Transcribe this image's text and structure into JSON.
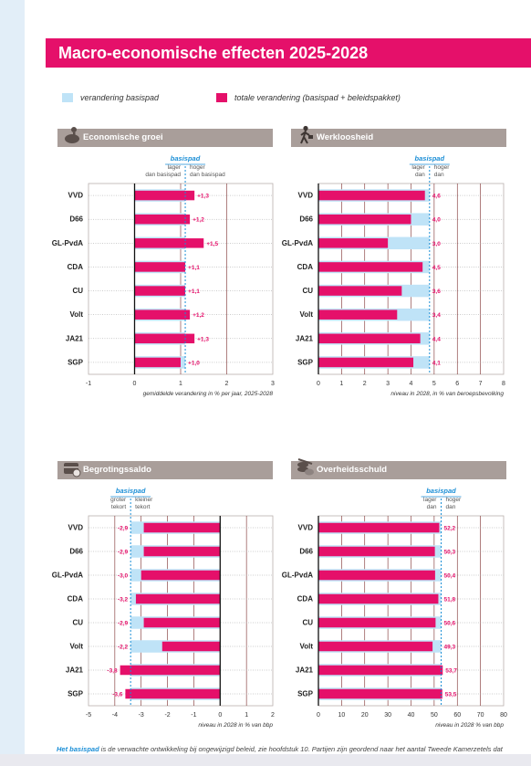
{
  "title": "Macro-economische effecten 2025-2028",
  "legend": {
    "basispad_label": "verandering basispad",
    "totaal_label": "totale verandering (basispad + beleidspakket)",
    "basispad_color": "#bfe3f7",
    "totaal_color": "#e5106a"
  },
  "panels": [
    {
      "title": "Economische groei",
      "icon": "piggy-bank-person-icon"
    },
    {
      "title": "Werkloosheid",
      "icon": "walking-person-briefcase-icon"
    },
    {
      "title": "Begrotingssaldo",
      "icon": "treasure-chest-coin-icon"
    },
    {
      "title": "Overheidsschuld",
      "icon": "coin-stack-icon"
    }
  ],
  "chart_data": [
    {
      "type": "bar",
      "orientation": "horizontal",
      "title": "Economische groei",
      "categories": [
        "VVD",
        "D66",
        "GL-PvdA",
        "CDA",
        "CU",
        "Volt",
        "JA21",
        "SGP"
      ],
      "series": [
        {
          "values": [
            1.3,
            1.2,
            1.5,
            1.1,
            1.1,
            1.2,
            1.3,
            1.0
          ]
        }
      ],
      "value_labels": [
        "+1,3",
        "+1,2",
        "+1,5",
        "+1,1",
        "+1,1",
        "+1,2",
        "+1,3",
        "+1,0"
      ],
      "basispad": 1.1,
      "baseline": 0,
      "xlim": [
        -1,
        3
      ],
      "ticks": [
        -1,
        0,
        1,
        2,
        3
      ],
      "xlabel": "gemiddelde verandering in % per jaar, 2025-2028",
      "direction_labels": {
        "marker": "basispad",
        "left": "lager\ndan basispad",
        "right": "hoger\ndan basispad"
      }
    },
    {
      "type": "bar",
      "orientation": "horizontal",
      "title": "Werkloosheid",
      "categories": [
        "VVD",
        "D66",
        "GL-PvdA",
        "CDA",
        "CU",
        "Volt",
        "JA21",
        "SGP"
      ],
      "series": [
        {
          "values": [
            4.6,
            4.0,
            3.0,
            4.5,
            3.6,
            3.4,
            4.4,
            4.1
          ]
        }
      ],
      "value_labels": [
        "4,6",
        "4,0",
        "3,0",
        "4,5",
        "3,6",
        "3,4",
        "4,4",
        "4,1"
      ],
      "basispad": 4.8,
      "baseline": 0,
      "xlim": [
        0,
        8
      ],
      "ticks": [
        0,
        1,
        2,
        3,
        4,
        5,
        6,
        7,
        8
      ],
      "xlabel": "niveau in 2028, in % van beroepsbevolking",
      "direction_labels": {
        "marker": "basispad",
        "left": "lager\ndan",
        "right": "hoger\ndan"
      }
    },
    {
      "type": "bar",
      "orientation": "horizontal",
      "title": "Begrotingssaldo",
      "categories": [
        "VVD",
        "D66",
        "GL-PvdA",
        "CDA",
        "CU",
        "Volt",
        "JA21",
        "SGP"
      ],
      "series": [
        {
          "values": [
            -2.9,
            -2.9,
            -3.0,
            -3.2,
            -2.9,
            -2.2,
            -3.8,
            -3.6
          ]
        }
      ],
      "value_labels": [
        "-2,9",
        "-2,9",
        "-3,0",
        "-3,2",
        "-2,9",
        "-2,2",
        "-3,8",
        "-3,6"
      ],
      "basispad": -3.4,
      "baseline": 0,
      "xlim": [
        -5,
        2
      ],
      "ticks": [
        -5,
        -4,
        -3,
        -2,
        -1,
        0,
        1,
        2
      ],
      "xlabel": "niveau in 2028 in % van bbp",
      "direction_labels": {
        "marker": "basispad",
        "left": "groter\ntekort",
        "right": "kleiner\ntekort"
      }
    },
    {
      "type": "bar",
      "orientation": "horizontal",
      "title": "Overheidsschuld",
      "categories": [
        "VVD",
        "D66",
        "GL-PvdA",
        "CDA",
        "CU",
        "Volt",
        "JA21",
        "SGP"
      ],
      "series": [
        {
          "values": [
            52.2,
            50.3,
            50.4,
            51.8,
            50.6,
            49.3,
            53.7,
            53.5
          ]
        }
      ],
      "value_labels": [
        "52,2",
        "50,3",
        "50,4",
        "51,8",
        "50,6",
        "49,3",
        "53,7",
        "53,5"
      ],
      "basispad": 53.0,
      "baseline": 0,
      "xlim": [
        0,
        80
      ],
      "ticks": [
        0,
        10,
        20,
        30,
        40,
        50,
        60,
        70,
        80
      ],
      "xlabel": "niveau in 2028 % van bbp",
      "direction_labels": {
        "marker": "basispad",
        "left": "lager\ndan",
        "right": "hoger\ndan"
      }
    }
  ],
  "footer": {
    "highlight": "Het basispad",
    "text": " is de verwachte ontwikkeling bij ongewijzigd beleid, zie hoofdstuk 10. Partijen zijn geordend naar het aantal Tweede Kamerzetels dat"
  }
}
